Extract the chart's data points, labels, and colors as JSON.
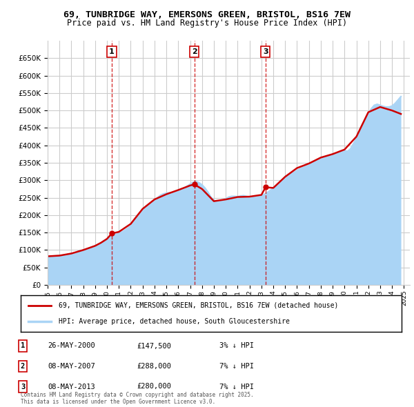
{
  "title_line1": "69, TUNBRIDGE WAY, EMERSONS GREEN, BRISTOL, BS16 7EW",
  "title_line2": "Price paid vs. HM Land Registry's House Price Index (HPI)",
  "ylabel": "",
  "ylim": [
    0,
    700000
  ],
  "yticks": [
    0,
    50000,
    100000,
    150000,
    200000,
    250000,
    300000,
    350000,
    400000,
    450000,
    500000,
    550000,
    600000,
    650000
  ],
  "xlim_start": 1995.0,
  "xlim_end": 2025.5,
  "background_color": "#ffffff",
  "grid_color": "#cccccc",
  "hpi_color": "#aad4f5",
  "price_color": "#cc0000",
  "transactions": [
    {
      "num": 1,
      "date_dec": 2000.4,
      "price": 147500,
      "x_label": 2000.4
    },
    {
      "num": 2,
      "date_dec": 2007.35,
      "price": 288000,
      "x_label": 2007.35
    },
    {
      "num": 3,
      "date_dec": 2013.35,
      "price": 280000,
      "x_label": 2013.35
    }
  ],
  "legend_line1": "69, TUNBRIDGE WAY, EMERSONS GREEN, BRISTOL, BS16 7EW (detached house)",
  "legend_line2": "HPI: Average price, detached house, South Gloucestershire",
  "table_rows": [
    {
      "num": "1",
      "date": "26-MAY-2000",
      "price": "£147,500",
      "note": "3% ↓ HPI"
    },
    {
      "num": "2",
      "date": "08-MAY-2007",
      "price": "£288,000",
      "note": "7% ↓ HPI"
    },
    {
      "num": "3",
      "date": "08-MAY-2013",
      "price": "£280,000",
      "note": "7% ↓ HPI"
    }
  ],
  "footer": "Contains HM Land Registry data © Crown copyright and database right 2025.\nThis data is licensed under the Open Government Licence v3.0.",
  "hpi_data": {
    "years": [
      1995.0,
      1995.25,
      1995.5,
      1995.75,
      1996.0,
      1996.25,
      1996.5,
      1996.75,
      1997.0,
      1997.25,
      1997.5,
      1997.75,
      1998.0,
      1998.25,
      1998.5,
      1998.75,
      1999.0,
      1999.25,
      1999.5,
      1999.75,
      2000.0,
      2000.25,
      2000.5,
      2000.75,
      2001.0,
      2001.25,
      2001.5,
      2001.75,
      2002.0,
      2002.25,
      2002.5,
      2002.75,
      2003.0,
      2003.25,
      2003.5,
      2003.75,
      2004.0,
      2004.25,
      2004.5,
      2004.75,
      2005.0,
      2005.25,
      2005.5,
      2005.75,
      2006.0,
      2006.25,
      2006.5,
      2006.75,
      2007.0,
      2007.25,
      2007.5,
      2007.75,
      2008.0,
      2008.25,
      2008.5,
      2008.75,
      2009.0,
      2009.25,
      2009.5,
      2009.75,
      2010.0,
      2010.25,
      2010.5,
      2010.75,
      2011.0,
      2011.25,
      2011.5,
      2011.75,
      2012.0,
      2012.25,
      2012.5,
      2012.75,
      2013.0,
      2013.25,
      2013.5,
      2013.75,
      2014.0,
      2014.25,
      2014.5,
      2014.75,
      2015.0,
      2015.25,
      2015.5,
      2015.75,
      2016.0,
      2016.25,
      2016.5,
      2016.75,
      2017.0,
      2017.25,
      2017.5,
      2017.75,
      2018.0,
      2018.25,
      2018.5,
      2018.75,
      2019.0,
      2019.25,
      2019.5,
      2019.75,
      2020.0,
      2020.25,
      2020.5,
      2020.75,
      2021.0,
      2021.25,
      2021.5,
      2021.75,
      2022.0,
      2022.25,
      2022.5,
      2022.75,
      2023.0,
      2023.25,
      2023.5,
      2023.75,
      2024.0,
      2024.25,
      2024.5,
      2024.75
    ],
    "values": [
      82000,
      82500,
      83000,
      83500,
      84000,
      85000,
      86500,
      88000,
      90000,
      92000,
      95000,
      98000,
      100000,
      103000,
      106000,
      109000,
      112000,
      116000,
      121000,
      127000,
      132000,
      137000,
      141000,
      145000,
      148000,
      152000,
      157000,
      163000,
      170000,
      180000,
      192000,
      204000,
      213000,
      220000,
      228000,
      235000,
      242000,
      250000,
      257000,
      261000,
      263000,
      264000,
      265000,
      266000,
      268000,
      272000,
      277000,
      283000,
      289000,
      294000,
      296000,
      293000,
      287000,
      278000,
      266000,
      252000,
      243000,
      238000,
      238000,
      242000,
      247000,
      252000,
      254000,
      254000,
      253000,
      255000,
      256000,
      254000,
      252000,
      252000,
      253000,
      255000,
      257000,
      260000,
      265000,
      271000,
      278000,
      285000,
      292000,
      299000,
      306000,
      312000,
      318000,
      323000,
      328000,
      333000,
      337000,
      340000,
      343000,
      348000,
      353000,
      357000,
      361000,
      365000,
      368000,
      370000,
      372000,
      376000,
      380000,
      383000,
      385000,
      383000,
      390000,
      405000,
      420000,
      438000,
      458000,
      475000,
      490000,
      505000,
      515000,
      518000,
      515000,
      512000,
      510000,
      510000,
      513000,
      520000,
      530000,
      540000
    ]
  },
  "price_line_data": {
    "years": [
      1995.0,
      1996.0,
      1997.0,
      1998.0,
      1999.0,
      1999.5,
      2000.0,
      2000.4,
      2001.0,
      2002.0,
      2003.0,
      2004.0,
      2005.0,
      2006.0,
      2007.0,
      2007.35,
      2008.0,
      2009.0,
      2010.0,
      2011.0,
      2012.0,
      2013.0,
      2013.35,
      2014.0,
      2015.0,
      2016.0,
      2017.0,
      2018.0,
      2019.0,
      2020.0,
      2021.0,
      2022.0,
      2023.0,
      2024.0,
      2024.75
    ],
    "values": [
      82000,
      84000,
      90000,
      100000,
      112000,
      121000,
      132000,
      147500,
      152000,
      175000,
      218000,
      245000,
      260000,
      272000,
      285000,
      288000,
      275000,
      240000,
      245000,
      252000,
      253000,
      258000,
      280000,
      278000,
      310000,
      335000,
      348000,
      365000,
      375000,
      388000,
      425000,
      495000,
      510000,
      500000,
      490000
    ]
  }
}
